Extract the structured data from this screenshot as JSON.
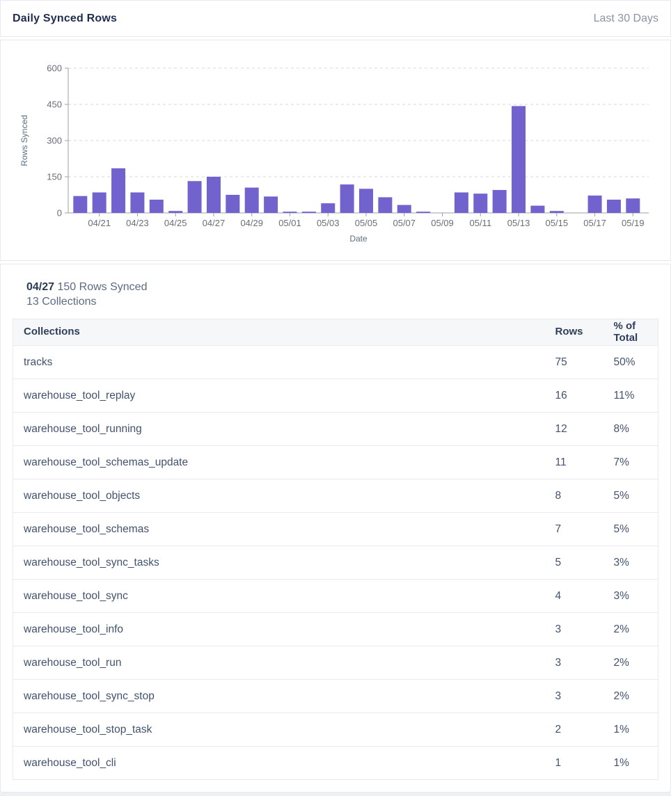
{
  "header": {
    "title": "Daily Synced Rows",
    "range_label": "Last 30 Days"
  },
  "chart_data": {
    "type": "bar",
    "title": "Daily Synced Rows",
    "xlabel": "Date",
    "ylabel": "Rows Synced",
    "ylim": [
      0,
      600
    ],
    "yticks": [
      0,
      150,
      300,
      450,
      600
    ],
    "grid": "horizontal-dashed",
    "legend": "none",
    "bar_color": "#7262ce",
    "categories": [
      "04/20",
      "04/21",
      "04/22",
      "04/23",
      "04/24",
      "04/25",
      "04/26",
      "04/27",
      "04/28",
      "04/29",
      "04/30",
      "05/01",
      "05/02",
      "05/03",
      "05/04",
      "05/05",
      "05/06",
      "05/07",
      "05/08",
      "05/09",
      "05/10",
      "05/11",
      "05/12",
      "05/13",
      "05/14",
      "05/15",
      "05/16",
      "05/17",
      "05/18",
      "05/19"
    ],
    "values": [
      70,
      85,
      185,
      85,
      55,
      8,
      132,
      150,
      75,
      105,
      68,
      2,
      1,
      40,
      118,
      100,
      65,
      33,
      3,
      0,
      85,
      80,
      95,
      443,
      30,
      8,
      0,
      72,
      55,
      60
    ],
    "x_tick_label_every": 2
  },
  "detail": {
    "date": "04/27",
    "rows_text": "150 Rows Synced",
    "collections_text": "13 Collections"
  },
  "table": {
    "columns": [
      "Collections",
      "Rows",
      "% of Total"
    ],
    "rows": [
      {
        "collection": "tracks",
        "rows": "75",
        "pct": "50%"
      },
      {
        "collection": "warehouse_tool_replay",
        "rows": "16",
        "pct": "11%"
      },
      {
        "collection": "warehouse_tool_running",
        "rows": "12",
        "pct": "8%"
      },
      {
        "collection": "warehouse_tool_schemas_update",
        "rows": "11",
        "pct": "7%"
      },
      {
        "collection": "warehouse_tool_objects",
        "rows": "8",
        "pct": "5%"
      },
      {
        "collection": "warehouse_tool_schemas",
        "rows": "7",
        "pct": "5%"
      },
      {
        "collection": "warehouse_tool_sync_tasks",
        "rows": "5",
        "pct": "3%"
      },
      {
        "collection": "warehouse_tool_sync",
        "rows": "4",
        "pct": "3%"
      },
      {
        "collection": "warehouse_tool_info",
        "rows": "3",
        "pct": "2%"
      },
      {
        "collection": "warehouse_tool_run",
        "rows": "3",
        "pct": "2%"
      },
      {
        "collection": "warehouse_tool_sync_stop",
        "rows": "3",
        "pct": "2%"
      },
      {
        "collection": "warehouse_tool_stop_task",
        "rows": "2",
        "pct": "1%"
      },
      {
        "collection": "warehouse_tool_cli",
        "rows": "1",
        "pct": "1%"
      }
    ]
  },
  "colors": {
    "bar": "#7262ce",
    "axis_line": "#9aa0a8",
    "gridline": "#d8dade",
    "tick_text": "#696d77",
    "axis_title_text": "#587083",
    "title_text": "#1e2d4f",
    "muted_text": "#8a93a5"
  }
}
